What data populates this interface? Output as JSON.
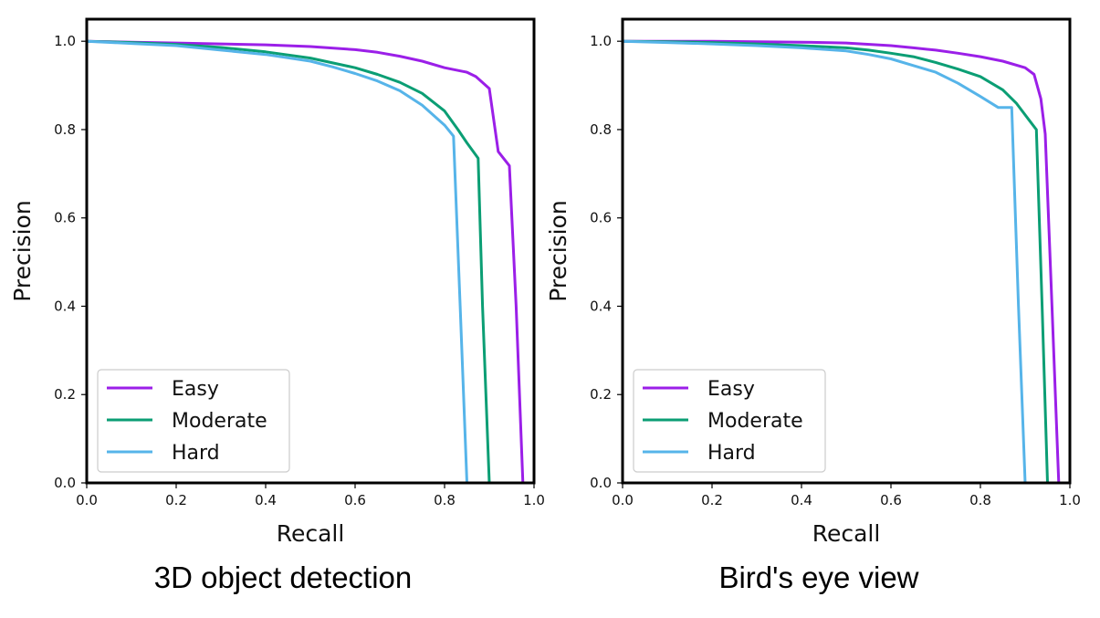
{
  "chart_data": [
    {
      "type": "line",
      "title": "",
      "caption": "3D object detection",
      "xlabel": "Recall",
      "ylabel": "Precision",
      "xlim": [
        0.0,
        1.0
      ],
      "ylim": [
        0.0,
        1.05
      ],
      "xticks": [
        "0.0",
        "0.2",
        "0.4",
        "0.6",
        "0.8",
        "1.0"
      ],
      "yticks": [
        "0.0",
        "0.2",
        "0.4",
        "0.6",
        "0.8",
        "1.0"
      ],
      "grid": false,
      "legend_position": "lower-left",
      "series": [
        {
          "name": "Easy",
          "color": "#9b1fe8",
          "x": [
            0.0,
            0.1,
            0.2,
            0.3,
            0.4,
            0.5,
            0.6,
            0.65,
            0.7,
            0.75,
            0.8,
            0.85,
            0.87,
            0.9,
            0.92,
            0.945,
            0.96,
            0.975,
            1.0
          ],
          "y": [
            1.0,
            0.998,
            0.996,
            0.994,
            0.992,
            0.988,
            0.981,
            0.975,
            0.966,
            0.955,
            0.94,
            0.93,
            0.92,
            0.893,
            0.75,
            0.718,
            0.4,
            0.0,
            0.0
          ]
        },
        {
          "name": "Moderate",
          "color": "#0b9e74",
          "x": [
            0.0,
            0.1,
            0.2,
            0.3,
            0.4,
            0.5,
            0.6,
            0.65,
            0.7,
            0.75,
            0.8,
            0.83,
            0.85,
            0.875,
            0.885,
            0.9,
            1.0
          ],
          "y": [
            1.0,
            0.997,
            0.993,
            0.986,
            0.976,
            0.962,
            0.94,
            0.925,
            0.907,
            0.882,
            0.842,
            0.8,
            0.77,
            0.735,
            0.4,
            0.0,
            0.0
          ]
        },
        {
          "name": "Hard",
          "color": "#56b4e9",
          "x": [
            0.0,
            0.1,
            0.2,
            0.3,
            0.4,
            0.5,
            0.55,
            0.6,
            0.65,
            0.7,
            0.75,
            0.8,
            0.82,
            0.835,
            0.85,
            1.0
          ],
          "y": [
            1.0,
            0.995,
            0.99,
            0.98,
            0.97,
            0.955,
            0.942,
            0.927,
            0.91,
            0.888,
            0.855,
            0.81,
            0.785,
            0.4,
            0.0,
            0.0
          ]
        }
      ]
    },
    {
      "type": "line",
      "title": "",
      "caption": "Bird's eye view",
      "xlabel": "Recall",
      "ylabel": "Precision",
      "xlim": [
        0.0,
        1.0
      ],
      "ylim": [
        0.0,
        1.05
      ],
      "xticks": [
        "0.0",
        "0.2",
        "0.4",
        "0.6",
        "0.8",
        "1.0"
      ],
      "yticks": [
        "0.0",
        "0.2",
        "0.4",
        "0.6",
        "0.8",
        "1.0"
      ],
      "grid": false,
      "legend_position": "lower-left",
      "series": [
        {
          "name": "Easy",
          "color": "#9b1fe8",
          "x": [
            0.0,
            0.1,
            0.2,
            0.3,
            0.4,
            0.5,
            0.6,
            0.65,
            0.7,
            0.75,
            0.8,
            0.85,
            0.9,
            0.92,
            0.935,
            0.945,
            0.96,
            0.975,
            1.0
          ],
          "y": [
            1.0,
            1.0,
            1.0,
            0.999,
            0.998,
            0.996,
            0.99,
            0.985,
            0.98,
            0.973,
            0.965,
            0.955,
            0.94,
            0.925,
            0.87,
            0.79,
            0.4,
            0.0,
            0.0
          ]
        },
        {
          "name": "Moderate",
          "color": "#0b9e74",
          "x": [
            0.0,
            0.1,
            0.2,
            0.3,
            0.4,
            0.5,
            0.55,
            0.6,
            0.65,
            0.7,
            0.75,
            0.8,
            0.85,
            0.88,
            0.91,
            0.925,
            0.938,
            0.95,
            1.0
          ],
          "y": [
            1.0,
            0.999,
            0.997,
            0.994,
            0.99,
            0.985,
            0.98,
            0.973,
            0.965,
            0.952,
            0.937,
            0.92,
            0.89,
            0.86,
            0.82,
            0.8,
            0.4,
            0.0,
            0.0
          ]
        },
        {
          "name": "Hard",
          "color": "#56b4e9",
          "x": [
            0.0,
            0.1,
            0.2,
            0.3,
            0.4,
            0.5,
            0.55,
            0.6,
            0.65,
            0.7,
            0.75,
            0.8,
            0.84,
            0.87,
            0.885,
            0.9,
            1.0
          ],
          "y": [
            1.0,
            0.997,
            0.994,
            0.99,
            0.985,
            0.978,
            0.97,
            0.96,
            0.945,
            0.93,
            0.905,
            0.875,
            0.85,
            0.85,
            0.4,
            0.0,
            0.0
          ]
        }
      ]
    }
  ]
}
